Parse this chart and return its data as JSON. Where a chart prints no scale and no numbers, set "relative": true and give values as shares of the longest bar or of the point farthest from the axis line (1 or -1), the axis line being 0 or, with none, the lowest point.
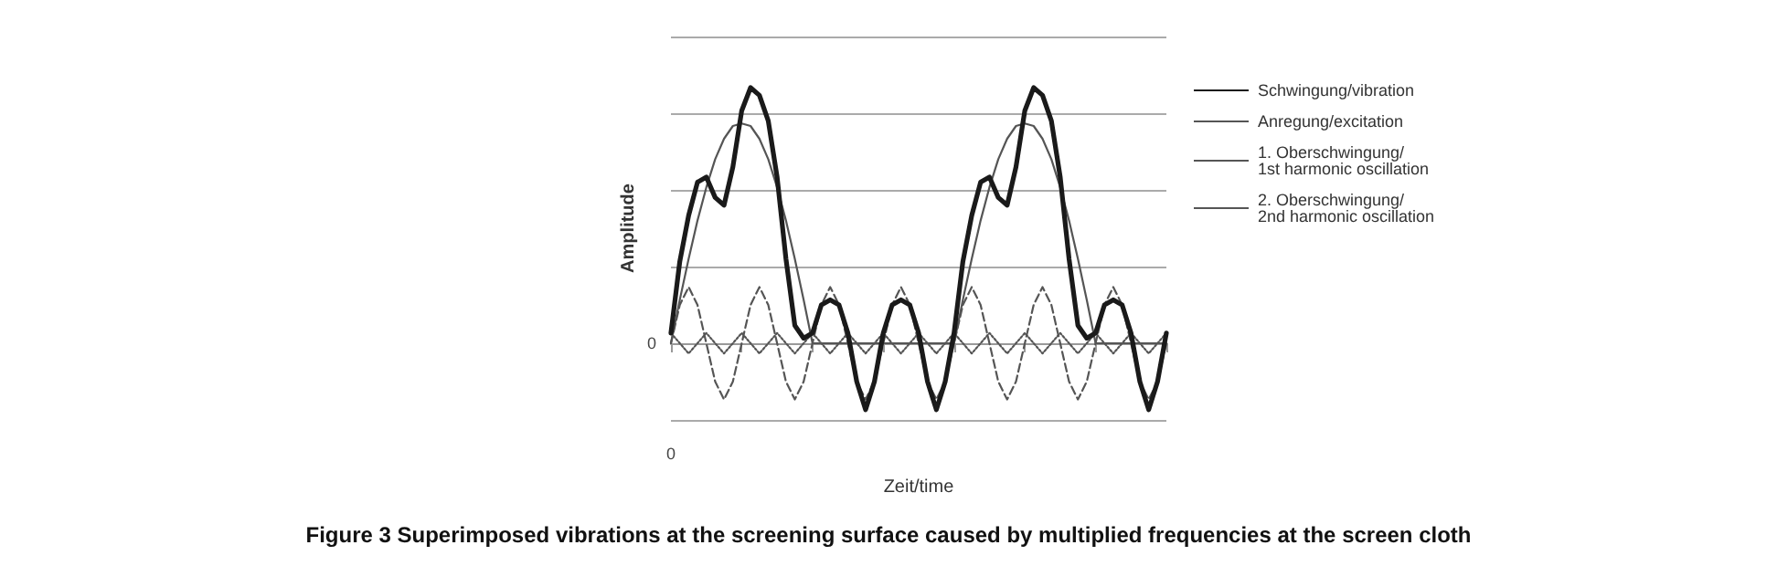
{
  "chart_data": {
    "type": "line",
    "relative": true,
    "title": "Figure 3 Superimposed vibrations at the screening surface caused by multiplied frequencies at the screen cloth",
    "xlabel": "Zeit/time",
    "ylabel": "Amplitude",
    "categories": [
      null,
      null,
      null,
      null,
      null,
      null,
      null,
      null,
      null,
      null,
      null,
      null,
      null,
      null,
      null,
      null,
      null,
      null,
      null,
      null,
      null,
      null,
      null,
      null,
      null,
      null,
      null,
      null,
      null,
      null,
      null,
      null,
      null,
      null,
      null,
      null,
      null,
      null,
      null,
      null,
      null,
      null,
      null,
      null,
      null,
      null,
      null,
      null,
      null,
      null,
      null,
      null,
      null,
      null,
      null,
      null,
      null
    ],
    "annotations": [
      "0",
      "0"
    ],
    "grid": "y",
    "legend": "right",
    "series": [
      {
        "name": "Schwingung/vibration",
        "color": "#1a1a1a",
        "line_style": "solid",
        "values": [
          0.04,
          0.32,
          0.5,
          0.63,
          0.65,
          0.57,
          0.54,
          0.69,
          0.91,
          1,
          0.97,
          0.87,
          0.65,
          0.33,
          0.07,
          0.02,
          0.04,
          0.15,
          0.17,
          0.15,
          0.04,
          -0.15,
          -0.26,
          -0.15,
          0.04,
          0.15,
          0.17,
          0.15,
          0.04,
          -0.15,
          -0.26,
          -0.15,
          0.04,
          0.32,
          0.5,
          0.63,
          0.65,
          0.57,
          0.54,
          0.69,
          0.91,
          1,
          0.97,
          0.87,
          0.65,
          0.33,
          0.07,
          0.02,
          0.04,
          0.15,
          0.17,
          0.15,
          0.04,
          -0.15,
          -0.26,
          -0.15,
          0.04
        ]
      },
      {
        "name": "Anregung/excitation",
        "color": "#555555",
        "line_style": "solid",
        "values": [
          0,
          0.17,
          0.33,
          0.48,
          0.61,
          0.72,
          0.8,
          0.85,
          0.86,
          0.85,
          0.8,
          0.72,
          0.61,
          0.48,
          0.33,
          0.17,
          0,
          0,
          0,
          0,
          0,
          0,
          0,
          0,
          0,
          0,
          0,
          0,
          0,
          0,
          0,
          0,
          0,
          0.17,
          0.33,
          0.48,
          0.61,
          0.72,
          0.8,
          0.85,
          0.86,
          0.85,
          0.8,
          0.72,
          0.61,
          0.48,
          0.33,
          0.17,
          0,
          0,
          0,
          0,
          0,
          0,
          0,
          0,
          0
        ]
      },
      {
        "name": "1. Oberschwingung/\n1st harmonic oscillation",
        "color": "#555555",
        "line_style": "dashed",
        "values": [
          0,
          0.15,
          0.22,
          0.15,
          0,
          -0.15,
          -0.22,
          -0.15,
          0,
          0.15,
          0.22,
          0.15,
          0,
          -0.15,
          -0.22,
          -0.15,
          0,
          0.15,
          0.22,
          0.15,
          0,
          -0.15,
          -0.22,
          -0.15,
          0,
          0.15,
          0.22,
          0.15,
          0,
          -0.15,
          -0.22,
          -0.15,
          0,
          0.15,
          0.22,
          0.15,
          0,
          -0.15,
          -0.22,
          -0.15,
          0,
          0.15,
          0.22,
          0.15,
          0,
          -0.15,
          -0.22,
          -0.15,
          0,
          0.15,
          0.22,
          0.15,
          0,
          -0.15,
          -0.22,
          -0.15,
          0
        ]
      },
      {
        "name": "2. Oberschwingung/\n2nd harmonic oscillation",
        "color": "#555555",
        "line_style": "dotted",
        "values": [
          0.04,
          0,
          -0.04,
          0,
          0.04,
          0,
          -0.04,
          0,
          0.04,
          0,
          -0.04,
          0,
          0.04,
          0,
          -0.04,
          0,
          0.04,
          0,
          -0.04,
          0,
          0.04,
          0,
          -0.04,
          0,
          0.04,
          0,
          -0.04,
          0,
          0.04,
          0,
          -0.04,
          0,
          0.04,
          0,
          -0.04,
          0,
          0.04,
          0,
          -0.04,
          0,
          0.04,
          0,
          -0.04,
          0,
          0.04,
          0,
          -0.04,
          0,
          0.04,
          0,
          -0.04,
          0,
          0.04,
          0,
          -0.04,
          0,
          0.04
        ]
      }
    ]
  }
}
